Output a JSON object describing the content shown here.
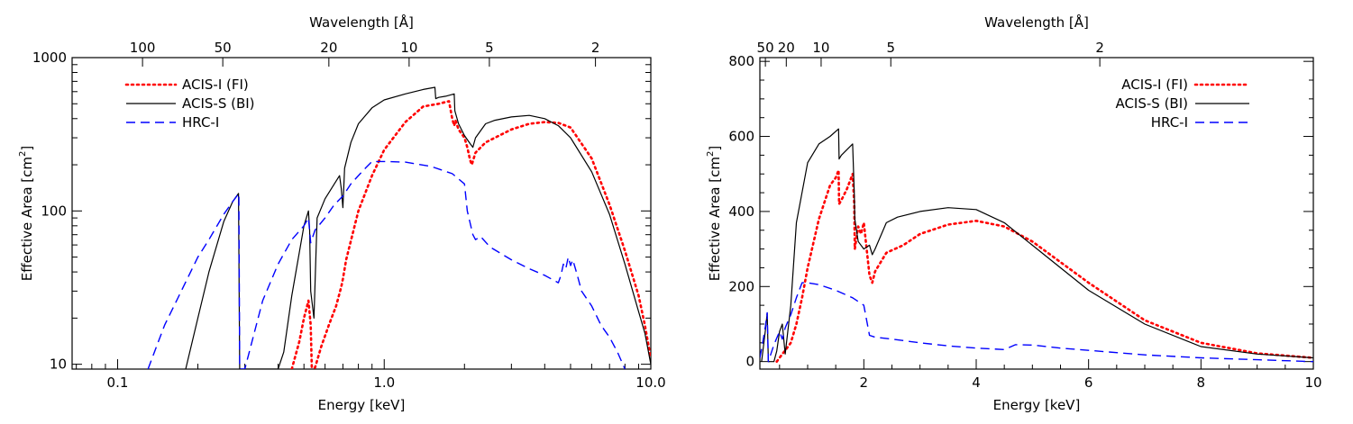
{
  "chart_data": [
    {
      "type": "line",
      "xscale": "log",
      "yscale": "log",
      "xlabel": "Energy [keV]",
      "ylabel": "Effective Area [cm",
      "ylabel_sup": "2",
      "ylabel_close": "]",
      "toplabel": "Wavelength [Å]",
      "xlim": [
        0.0675,
        10.0
      ],
      "ylim": [
        9.3,
        1000
      ],
      "x_ticks": [
        {
          "v": 0.1,
          "label": "0.1"
        },
        {
          "v": 1.0,
          "label": "1.0"
        },
        {
          "v": 10.0,
          "label": "10.0"
        }
      ],
      "y_ticks": [
        {
          "v": 10,
          "label": "10"
        },
        {
          "v": 100,
          "label": "100"
        },
        {
          "v": 1000,
          "label": "1000"
        }
      ],
      "top_ticks": [
        {
          "v": 0.124,
          "label": "100"
        },
        {
          "v": 0.248,
          "label": "50"
        },
        {
          "v": 0.62,
          "label": "20"
        },
        {
          "v": 1.24,
          "label": "10"
        },
        {
          "v": 2.48,
          "label": "5"
        },
        {
          "v": 6.2,
          "label": "2"
        }
      ],
      "legend_position": "top-left",
      "series": [
        {
          "name": "ACIS-I (FI)",
          "color": "#ff0000",
          "dash": "dotted",
          "x": [
            0.45,
            0.48,
            0.5,
            0.52,
            0.53,
            0.535,
            0.55,
            0.58,
            0.62,
            0.66,
            0.69,
            0.7,
            0.72,
            0.8,
            0.9,
            1.0,
            1.2,
            1.4,
            1.6,
            1.75,
            1.8,
            1.83,
            1.85,
            1.9,
            2.0,
            2.05,
            2.1,
            2.13,
            2.2,
            2.4,
            2.7,
            3.0,
            3.5,
            4.0,
            4.5,
            5.0,
            6.0,
            7.0,
            8.0,
            9.0,
            9.5,
            10.0
          ],
          "y": [
            9.3,
            14,
            20,
            26,
            18,
            9.5,
            9.5,
            13,
            18,
            24,
            32,
            36,
            48,
            100,
            170,
            250,
            380,
            480,
            500,
            520,
            400,
            360,
            390,
            340,
            300,
            260,
            215,
            200,
            240,
            280,
            310,
            340,
            370,
            380,
            375,
            350,
            220,
            110,
            55,
            28,
            18,
            11
          ]
        },
        {
          "name": "ACIS-S (BI)",
          "color": "#000000",
          "dash": "solid",
          "x": [
            0.18,
            0.2,
            0.22,
            0.25,
            0.27,
            0.284,
            0.285,
            0.287,
            0.3,
            0.4,
            0.42,
            0.45,
            0.5,
            0.52,
            0.525,
            0.53,
            0.545,
            0.56,
            0.6,
            0.65,
            0.68,
            0.69,
            0.7,
            0.71,
            0.75,
            0.8,
            0.9,
            1.0,
            1.2,
            1.4,
            1.55,
            1.56,
            1.6,
            1.7,
            1.83,
            1.84,
            1.9,
            2.0,
            2.1,
            2.15,
            2.2,
            2.4,
            2.6,
            3.0,
            3.5,
            4.0,
            4.5,
            5.0,
            6.0,
            7.0,
            8.0,
            9.0,
            9.5,
            10.0
          ],
          "y": [
            9.3,
            20,
            40,
            85,
            115,
            130,
            55,
            9.3,
            9.3,
            9.3,
            12,
            28,
            80,
            100,
            75,
            30,
            20,
            90,
            120,
            150,
            170,
            140,
            105,
            190,
            280,
            370,
            470,
            530,
            580,
            620,
            640,
            540,
            550,
            560,
            580,
            450,
            370,
            310,
            275,
            260,
            300,
            370,
            390,
            410,
            420,
            400,
            360,
            300,
            180,
            95,
            45,
            22,
            16,
            10
          ]
        },
        {
          "name": "HRC-I",
          "color": "#0000ff",
          "dash": "dashed",
          "x": [
            0.13,
            0.15,
            0.17,
            0.2,
            0.22,
            0.25,
            0.27,
            0.285,
            0.287,
            0.3,
            0.35,
            0.4,
            0.45,
            0.5,
            0.52,
            0.53,
            0.55,
            0.6,
            0.65,
            0.7,
            0.75,
            0.8,
            0.85,
            0.9,
            1.0,
            1.2,
            1.5,
            1.8,
            2.0,
            2.05,
            2.15,
            2.2,
            2.3,
            2.5,
            3.0,
            3.5,
            4.0,
            4.5,
            4.6,
            4.7,
            4.8,
            4.9,
            5.0,
            5.1,
            5.3,
            5.5,
            6.0,
            6.5,
            7.0,
            7.5,
            8.0
          ],
          "y": [
            9.3,
            18,
            28,
            50,
            65,
            95,
            115,
            130,
            9.3,
            9.3,
            26,
            45,
            65,
            80,
            90,
            62,
            75,
            90,
            110,
            125,
            150,
            170,
            190,
            210,
            210,
            208,
            195,
            175,
            150,
            100,
            70,
            65,
            68,
            58,
            48,
            42,
            38,
            34,
            38,
            45,
            42,
            50,
            44,
            48,
            38,
            30,
            24,
            18,
            15,
            12,
            9.3
          ]
        }
      ]
    },
    {
      "type": "line",
      "xscale": "linear",
      "yscale": "linear",
      "xlabel": "Energy [keV]",
      "ylabel": "Effective Area [cm",
      "ylabel_sup": "2",
      "ylabel_close": "]",
      "toplabel": "Wavelength [Å]",
      "xlim": [
        0.15,
        10.0
      ],
      "ylim": [
        -20,
        810
      ],
      "x_ticks": [
        {
          "v": 2,
          "label": "2"
        },
        {
          "v": 4,
          "label": "4"
        },
        {
          "v": 6,
          "label": "6"
        },
        {
          "v": 8,
          "label": "8"
        },
        {
          "v": 10,
          "label": "10"
        }
      ],
      "y_ticks": [
        {
          "v": 0,
          "label": "0"
        },
        {
          "v": 200,
          "label": "200"
        },
        {
          "v": 400,
          "label": "400"
        },
        {
          "v": 600,
          "label": "600"
        },
        {
          "v": 800,
          "label": "800"
        }
      ],
      "top_ticks": [
        {
          "v": 0.248,
          "label": "50"
        },
        {
          "v": 0.62,
          "label": "20"
        },
        {
          "v": 1.24,
          "label": "10"
        },
        {
          "v": 2.48,
          "label": "5"
        },
        {
          "v": 6.2,
          "label": "2"
        }
      ],
      "legend_position": "top-right",
      "series": [
        {
          "name": "ACIS-I (FI)",
          "color": "#ff0000",
          "dash": "dotted",
          "x": [
            0.45,
            0.55,
            0.6,
            0.7,
            0.8,
            0.9,
            1.0,
            1.2,
            1.4,
            1.5,
            1.55,
            1.56,
            1.6,
            1.7,
            1.8,
            1.83,
            1.84,
            1.9,
            1.95,
            2.0,
            2.1,
            2.15,
            2.2,
            2.4,
            2.7,
            3.0,
            3.5,
            4.0,
            4.5,
            5.0,
            6.0,
            7.0,
            8.0,
            9.0,
            10.0
          ],
          "y": [
            0,
            20,
            30,
            50,
            100,
            170,
            250,
            380,
            470,
            490,
            510,
            420,
            430,
            460,
            500,
            420,
            300,
            360,
            340,
            370,
            230,
            210,
            240,
            290,
            310,
            340,
            365,
            375,
            360,
            320,
            210,
            110,
            50,
            22,
            10
          ]
        },
        {
          "name": "ACIS-S (BI)",
          "color": "#000000",
          "dash": "solid",
          "x": [
            0.18,
            0.25,
            0.28,
            0.3,
            0.4,
            0.45,
            0.5,
            0.55,
            0.6,
            0.7,
            0.8,
            1.0,
            1.2,
            1.4,
            1.55,
            1.56,
            1.6,
            1.8,
            1.83,
            1.84,
            1.9,
            2.0,
            2.1,
            2.15,
            2.2,
            2.4,
            2.6,
            3.0,
            3.5,
            4.0,
            4.5,
            5.0,
            6.0,
            7.0,
            8.0,
            9.0,
            10.0
          ],
          "y": [
            0,
            85,
            130,
            0,
            0,
            28,
            80,
            100,
            20,
            150,
            370,
            530,
            580,
            600,
            620,
            540,
            550,
            580,
            450,
            380,
            320,
            300,
            310,
            285,
            300,
            370,
            385,
            400,
            410,
            405,
            370,
            310,
            190,
            100,
            40,
            20,
            10
          ]
        },
        {
          "name": "HRC-I",
          "color": "#0000ff",
          "dash": "dashed",
          "x": [
            0.15,
            0.2,
            0.25,
            0.28,
            0.3,
            0.4,
            0.5,
            0.55,
            0.6,
            0.7,
            0.8,
            0.9,
            1.0,
            1.2,
            1.5,
            1.8,
            2.0,
            2.1,
            2.2,
            2.5,
            3.0,
            3.5,
            4.0,
            4.5,
            4.7,
            5.0,
            5.5,
            6.0,
            7.0,
            8.0,
            9.0,
            10.0
          ],
          "y": [
            10,
            50,
            95,
            130,
            0,
            45,
            80,
            60,
            90,
            125,
            170,
            210,
            210,
            205,
            190,
            170,
            150,
            70,
            65,
            60,
            50,
            42,
            36,
            32,
            45,
            44,
            36,
            30,
            18,
            10,
            5,
            0
          ]
        }
      ]
    }
  ]
}
